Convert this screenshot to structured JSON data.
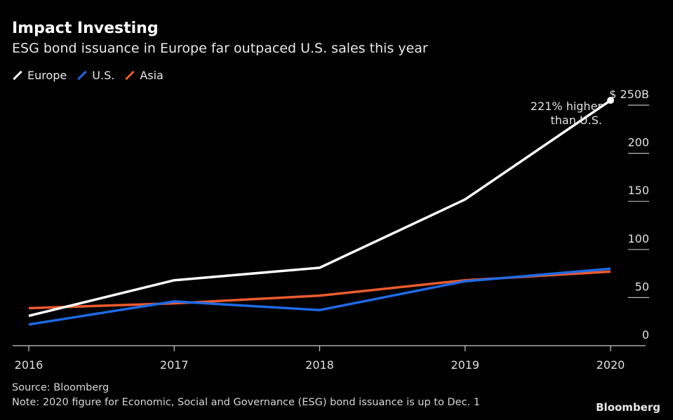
{
  "chart_data": {
    "type": "line",
    "title": "Impact Investing",
    "subtitle": "ESG bond issuance in Europe far outpaced U.S. sales this year",
    "x": [
      "2016",
      "2017",
      "2018",
      "2019",
      "2020"
    ],
    "series": [
      {
        "name": "Europe",
        "color": "#ffffff",
        "values": [
          31,
          68,
          81,
          152,
          255
        ]
      },
      {
        "name": "U.S.",
        "color": "#1f6ae6",
        "values": [
          22,
          46,
          37,
          67,
          80
        ]
      },
      {
        "name": "Asia",
        "color": "#ec5b2e",
        "values": [
          39,
          44,
          52,
          68,
          77
        ]
      }
    ],
    "yticks": [
      0,
      50,
      100,
      150,
      200,
      250
    ],
    "ytick_labels": [
      "0",
      "50",
      "100",
      "150",
      "200",
      "$ 250B"
    ],
    "ylim": [
      0,
      250
    ],
    "annotation": {
      "line1": "221% higher",
      "line2": "than U.S."
    },
    "grid": "horizontal ticks at right",
    "legend_placement": "top-left",
    "source": "Source: Bloomberg",
    "note": "Note: 2020 figure for Economic, Social and Governance (ESG) bond issuance is up to Dec. 1"
  },
  "brand": "Bloomberg"
}
